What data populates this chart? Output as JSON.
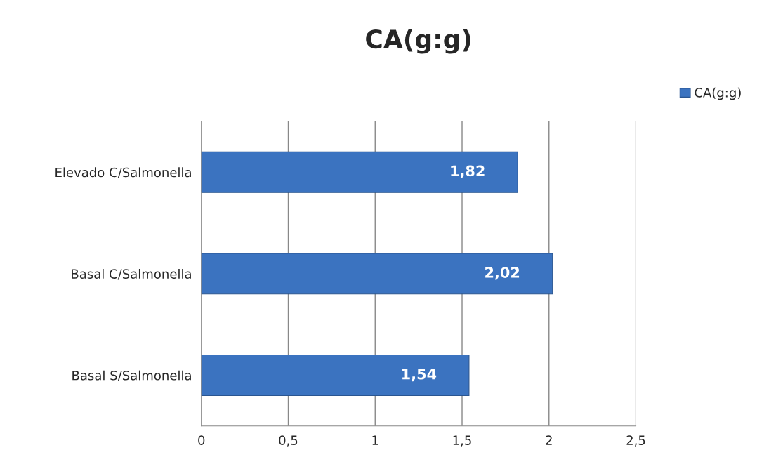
{
  "chart_data": {
    "type": "bar",
    "orientation": "horizontal",
    "title": "CA(g:g)",
    "categories": [
      "Elevado C/Salmonella",
      "Basal C/Salmonella",
      "Basal S/Salmonella"
    ],
    "series": [
      {
        "name": "CA(g:g)",
        "color": "#3b73c0",
        "values": [
          1.82,
          2.02,
          1.54
        ],
        "value_labels": [
          "1,82",
          "2,02",
          "1,54"
        ]
      }
    ],
    "xlim": [
      0,
      2.5
    ],
    "xticks": [
      0,
      {
        "value": 0.5,
        "label": "0,5"
      },
      1,
      {
        "value": 1.5,
        "label": "1,5"
      },
      2,
      {
        "value": 2.5,
        "label": "2,5"
      }
    ],
    "grid": "x",
    "legend": "top right"
  }
}
